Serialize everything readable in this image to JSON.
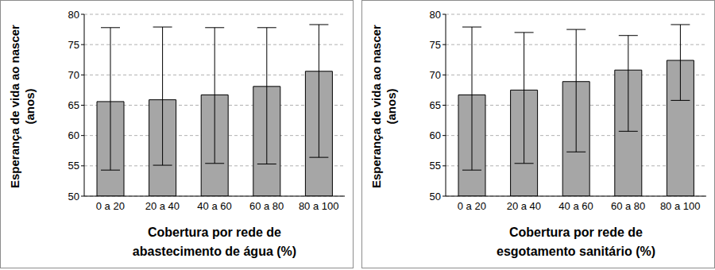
{
  "chart_data": [
    {
      "type": "bar",
      "categories": [
        "0 a 20",
        "20 a 40",
        "40 a 60",
        "60 a 80",
        "80 a 100"
      ],
      "values": [
        65.6,
        65.9,
        66.7,
        68.1,
        70.6
      ],
      "error_low": [
        54.3,
        55.1,
        55.4,
        55.3,
        56.4
      ],
      "error_high": [
        77.8,
        77.9,
        77.8,
        77.8,
        78.3
      ],
      "xlabel": [
        "Cobertura por rede de",
        "abastecimento de água (%)"
      ],
      "ylabel": [
        "Esperança de vida ao nascer",
        "(anos)"
      ],
      "ylim": [
        50,
        80
      ],
      "yticks": [
        50,
        55,
        60,
        65,
        70,
        75,
        80
      ],
      "grid": true,
      "color": "#a6a6a6"
    },
    {
      "type": "bar",
      "categories": [
        "0 a 20",
        "20 a 40",
        "40 a 60",
        "60 a 80",
        "80 a 100"
      ],
      "values": [
        66.7,
        67.5,
        68.9,
        70.8,
        72.4
      ],
      "error_low": [
        54.3,
        55.4,
        57.3,
        60.7,
        65.8
      ],
      "error_high": [
        77.9,
        77.0,
        77.5,
        76.5,
        78.3
      ],
      "xlabel": [
        "Cobertura por rede de",
        "esgotamento sanitário (%)"
      ],
      "ylabel": [
        "Esperança de vida ao nascer",
        "(anos)"
      ],
      "ylim": [
        50,
        80
      ],
      "yticks": [
        50,
        55,
        60,
        65,
        70,
        75,
        80
      ],
      "grid": true,
      "color": "#a6a6a6"
    }
  ]
}
